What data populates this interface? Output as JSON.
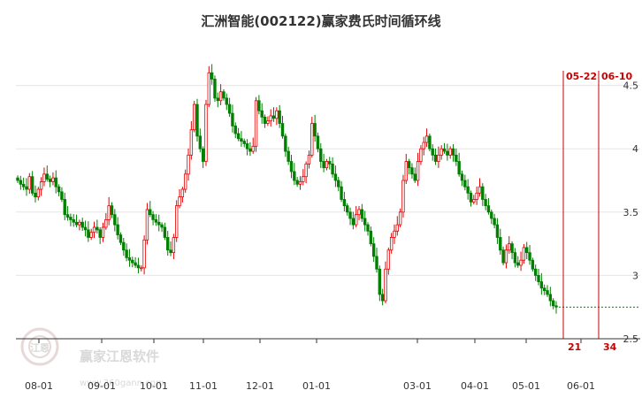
{
  "chart_data": {
    "type": "candlestick",
    "title": "汇洲智能(002122)赢家费氏时间循环线",
    "ylim": [
      2.5,
      4.85
    ],
    "yticks": [
      "2.5",
      "3",
      "3.5",
      "4",
      "4.5"
    ],
    "xticks": [
      "08-01",
      "09-01",
      "10-01",
      "11-01",
      "12-01",
      "01-01",
      "03-01",
      "04-01",
      "05-01",
      "06-01"
    ],
    "colors": {
      "up": "#e60000",
      "down": "#008000",
      "cycle_line": "#cc0000",
      "last_price_line": "#008000"
    },
    "cycle_lines": [
      {
        "date_label": "05-22",
        "count_label": "21"
      },
      {
        "date_label": "06-10",
        "count_label": "34"
      }
    ],
    "last_price": 2.75,
    "closes": [
      3.75,
      3.72,
      3.7,
      3.68,
      3.78,
      3.65,
      3.62,
      3.68,
      3.74,
      3.8,
      3.76,
      3.74,
      3.77,
      3.7,
      3.66,
      3.6,
      3.48,
      3.46,
      3.44,
      3.42,
      3.4,
      3.42,
      3.38,
      3.36,
      3.3,
      3.34,
      3.38,
      3.36,
      3.3,
      3.38,
      3.44,
      3.55,
      3.48,
      3.4,
      3.32,
      3.26,
      3.2,
      3.14,
      3.12,
      3.1,
      3.08,
      3.06,
      3.06,
      3.28,
      3.52,
      3.48,
      3.44,
      3.42,
      3.4,
      3.38,
      3.3,
      3.2,
      3.18,
      3.3,
      3.55,
      3.62,
      3.68,
      3.8,
      3.95,
      4.15,
      4.35,
      4.1,
      4.0,
      3.9,
      4.35,
      4.6,
      4.55,
      4.4,
      4.38,
      4.45,
      4.4,
      4.35,
      4.28,
      4.18,
      4.12,
      4.08,
      4.06,
      4.04,
      4.0,
      3.98,
      4.02,
      4.38,
      4.3,
      4.25,
      4.2,
      4.22,
      4.26,
      4.24,
      4.3,
      4.2,
      4.1,
      3.98,
      3.9,
      3.82,
      3.75,
      3.72,
      3.74,
      3.78,
      3.88,
      3.95,
      4.2,
      4.1,
      4.0,
      3.9,
      3.85,
      3.9,
      3.88,
      3.8,
      3.75,
      3.7,
      3.6,
      3.55,
      3.5,
      3.45,
      3.4,
      3.48,
      3.52,
      3.45,
      3.4,
      3.35,
      3.25,
      3.15,
      3.05,
      2.85,
      2.8,
      3.05,
      3.2,
      3.3,
      3.35,
      3.4,
      3.5,
      3.75,
      3.9,
      3.85,
      3.8,
      3.75,
      3.9,
      4.0,
      4.05,
      4.1,
      4.0,
      3.95,
      3.9,
      3.95,
      4.0,
      3.98,
      3.95,
      4.0,
      3.95,
      3.9,
      3.8,
      3.75,
      3.7,
      3.65,
      3.58,
      3.6,
      3.65,
      3.7,
      3.6,
      3.55,
      3.5,
      3.45,
      3.4,
      3.3,
      3.2,
      3.1,
      3.2,
      3.25,
      3.18,
      3.1,
      3.08,
      3.12,
      3.22,
      3.18,
      3.12,
      3.05,
      3.0,
      2.95,
      2.9,
      2.88,
      2.85,
      2.8,
      2.76,
      2.75
    ]
  },
  "watermark": {
    "name": "赢家江恩软件",
    "url": "www.360gann.com",
    "logo_text": "江恩"
  }
}
